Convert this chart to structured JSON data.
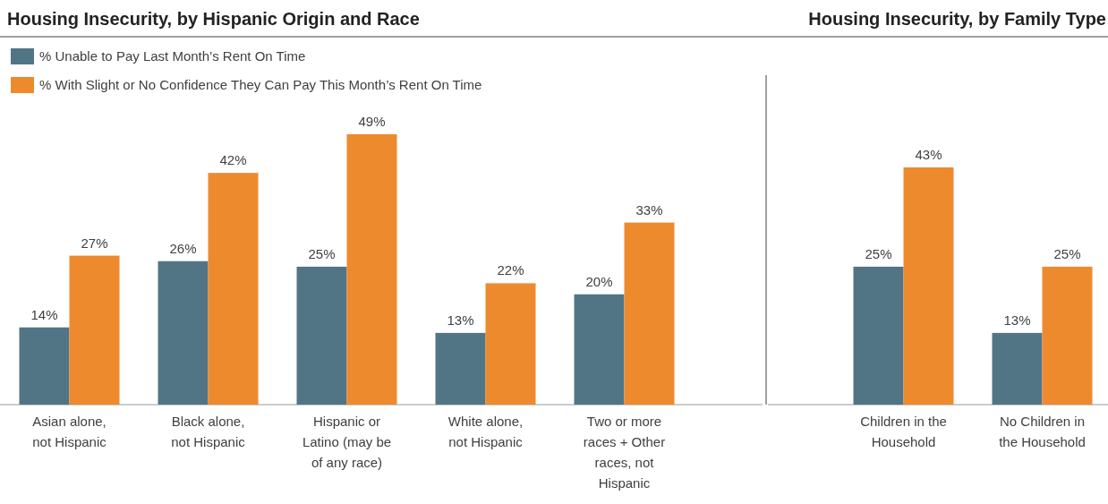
{
  "chart_data": [
    {
      "type": "bar",
      "title": "Housing Insecurity, by Hispanic Origin and Race",
      "categories": [
        "Asian alone, not Hispanic",
        "Black alone, not Hispanic",
        "Hispanic or Latino (may be of any race)",
        "White alone, not Hispanic",
        "Two or more races + Other races, not Hispanic"
      ],
      "series": [
        {
          "name": "% Unable to Pay Last Month’s Rent On Time",
          "color": "#527585",
          "values": [
            14,
            26,
            25,
            13,
            20
          ],
          "value_labels": [
            "14%",
            "26%",
            "25%",
            "13%",
            "20%"
          ]
        },
        {
          "name": "% With Slight or No Confidence They Can Pay This Month’s Rent On Time",
          "color": "#ee8a2e",
          "values": [
            27,
            42,
            49,
            22,
            33
          ],
          "value_labels": [
            "27%",
            "42%",
            "49%",
            "22%",
            "33%"
          ]
        }
      ],
      "legend": "top left"
    },
    {
      "type": "bar",
      "title": "Housing Insecurity, by Family Type",
      "categories": [
        "Children in the Household",
        "No Children in the Household"
      ],
      "series": [
        {
          "color": "#527585",
          "values": [
            25,
            13
          ],
          "value_labels": [
            "25%",
            "13%"
          ]
        },
        {
          "color": "#ee8a2e",
          "values": [
            43,
            25
          ],
          "value_labels": [
            "43%",
            "25%"
          ]
        }
      ]
    }
  ]
}
